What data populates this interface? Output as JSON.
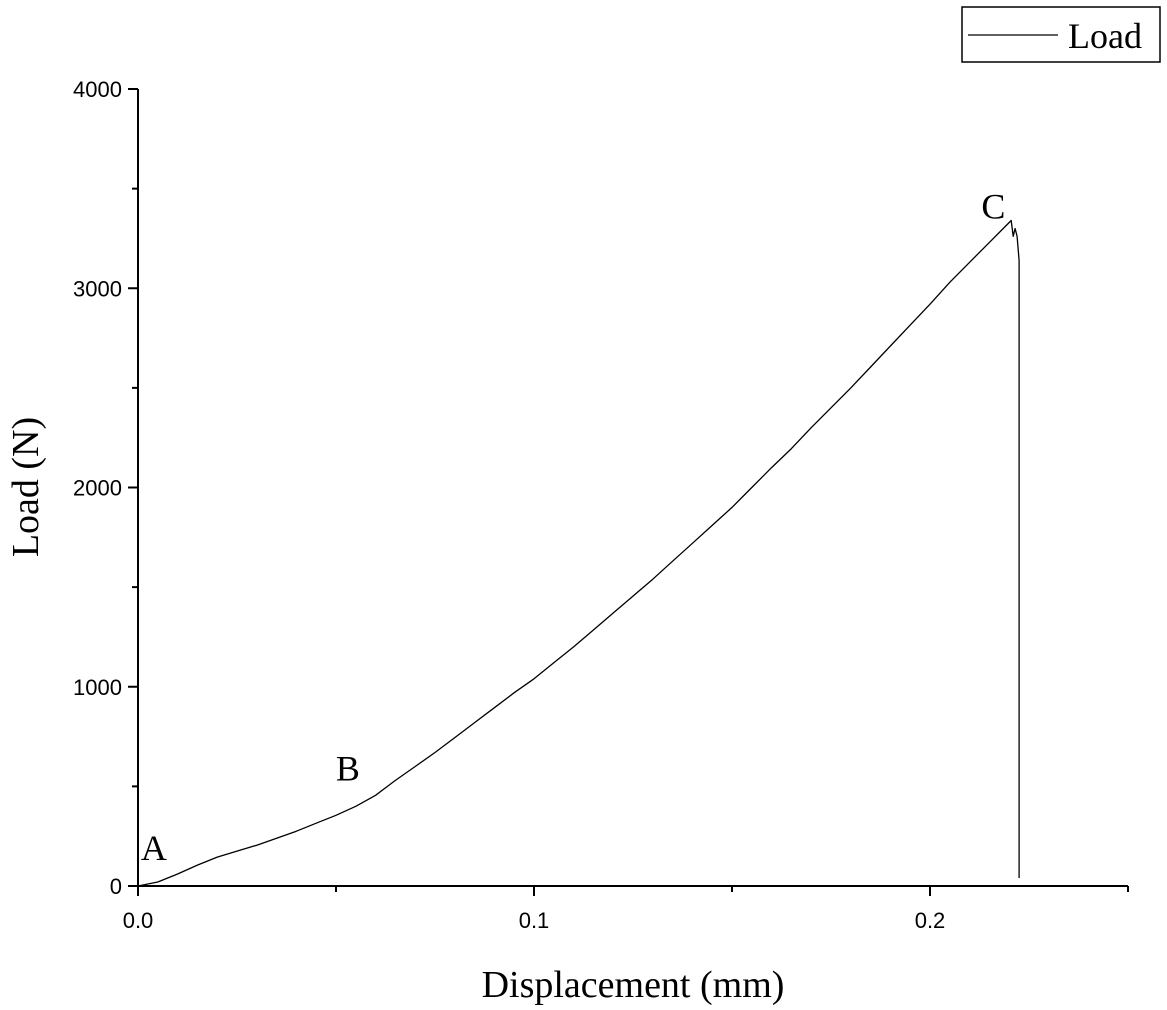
{
  "chart_data": {
    "type": "line",
    "xlabel": "Displacement (mm)",
    "ylabel": "Load (N)",
    "xlim": [
      0,
      0.25
    ],
    "ylim": [
      0,
      4000
    ],
    "x_major_ticks": [
      0.0,
      0.1,
      0.2
    ],
    "x_tick_labels": [
      "0.0",
      "0.1",
      "0.2"
    ],
    "x_minor_ticks": [
      0.05,
      0.15,
      0.25
    ],
    "y_major_ticks": [
      0,
      1000,
      2000,
      3000,
      4000
    ],
    "y_tick_labels": [
      "0",
      "1000",
      "2000",
      "3000",
      "4000"
    ],
    "y_minor_ticks": [
      500,
      1500,
      2500,
      3500
    ],
    "grid": false,
    "legend_position": "top-right",
    "series": [
      {
        "name": "Load",
        "color": "#000000",
        "x": [
          0.0,
          0.005,
          0.01,
          0.015,
          0.02,
          0.025,
          0.03,
          0.035,
          0.04,
          0.045,
          0.05,
          0.055,
          0.06,
          0.065,
          0.07,
          0.075,
          0.08,
          0.085,
          0.09,
          0.095,
          0.1,
          0.105,
          0.11,
          0.115,
          0.12,
          0.125,
          0.13,
          0.135,
          0.14,
          0.145,
          0.15,
          0.155,
          0.16,
          0.165,
          0.17,
          0.175,
          0.18,
          0.185,
          0.19,
          0.195,
          0.2,
          0.205,
          0.21,
          0.215,
          0.219,
          0.2205,
          0.221,
          0.2215,
          0.222,
          0.2225,
          0.2225,
          0.2225
        ],
        "y": [
          0,
          20,
          60,
          105,
          145,
          175,
          205,
          240,
          275,
          315,
          355,
          400,
          455,
          530,
          600,
          670,
          745,
          820,
          895,
          970,
          1040,
          1120,
          1200,
          1285,
          1370,
          1455,
          1540,
          1630,
          1720,
          1810,
          1900,
          2000,
          2100,
          2195,
          2300,
          2400,
          2500,
          2605,
          2710,
          2815,
          2920,
          3030,
          3130,
          3230,
          3310,
          3340,
          3260,
          3300,
          3260,
          3140,
          3100,
          40
        ]
      }
    ],
    "annotations": [
      {
        "text": "A",
        "x": 0.004,
        "y": 130
      },
      {
        "text": "B",
        "x": 0.053,
        "y": 530
      },
      {
        "text": "C",
        "x": 0.216,
        "y": 3350
      }
    ]
  }
}
